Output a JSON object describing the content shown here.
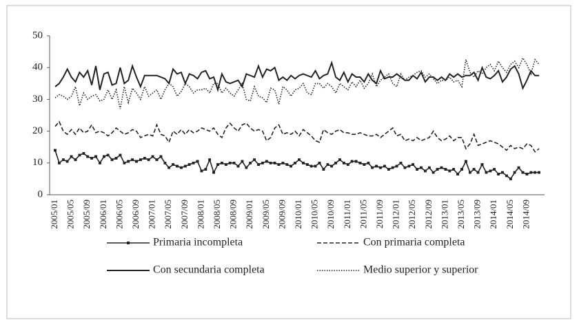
{
  "chart_data": {
    "type": "line",
    "categories": [
      "2005/01",
      null,
      null,
      null,
      "2005/05",
      null,
      null,
      null,
      "2005/09",
      null,
      null,
      null,
      "2006/01",
      null,
      null,
      null,
      "2006/05",
      null,
      null,
      null,
      "2006/09",
      null,
      null,
      null,
      "2007/01",
      null,
      null,
      null,
      "2007/05",
      null,
      null,
      null,
      "2007/09",
      null,
      null,
      null,
      "2008/01",
      null,
      null,
      null,
      "2008/05",
      null,
      null,
      null,
      "2008/09",
      null,
      null,
      null,
      "2009/01",
      null,
      null,
      null,
      "2009/05",
      null,
      null,
      null,
      "2009/09",
      null,
      null,
      null,
      "2010/01",
      null,
      null,
      null,
      "2010/05",
      null,
      null,
      null,
      "2010/09",
      null,
      null,
      null,
      "2011/01",
      null,
      null,
      null,
      "2011/05",
      null,
      null,
      null,
      "2011/09",
      null,
      null,
      null,
      "2012/01",
      null,
      null,
      null,
      "2012/05",
      null,
      null,
      null,
      "2012/09",
      null,
      null,
      null,
      "2013/01",
      null,
      null,
      null,
      "2013/05",
      null,
      null,
      null,
      "2013/09",
      null,
      null,
      null,
      "2014/01",
      null,
      null,
      null,
      "2014/05",
      null,
      null,
      null,
      "2014/09",
      null,
      null,
      null
    ],
    "series": [
      {
        "name": "Primaria incompleta",
        "color": "#222222",
        "style": "solid",
        "marker": "square",
        "values": [
          14,
          10,
          11,
          10.5,
          12,
          11,
          12.5,
          13,
          12,
          11.5,
          12,
          10,
          12,
          12.5,
          11,
          11.5,
          12.5,
          10,
          10.5,
          11,
          10.5,
          11,
          11.5,
          11,
          12,
          11,
          12,
          10,
          8.5,
          9.5,
          9,
          8.5,
          9,
          9.5,
          10,
          10.5,
          7.5,
          8,
          11,
          7,
          9.5,
          10,
          9.5,
          10,
          10,
          9,
          10.5,
          8.5,
          10,
          11,
          9.5,
          10,
          10.5,
          10,
          10,
          9.5,
          10,
          9.5,
          9,
          10,
          11,
          10,
          9.5,
          9,
          9,
          10,
          8,
          9.5,
          9,
          10,
          11,
          10,
          9.5,
          10.5,
          10.5,
          10,
          9.5,
          10,
          8.5,
          9,
          8.5,
          9,
          8,
          8.5,
          9,
          10,
          8.5,
          9,
          9.5,
          8,
          8.5,
          7.5,
          8.5,
          7,
          8,
          8.5,
          8,
          7.5,
          8,
          6.5,
          8,
          10.5,
          7,
          8,
          7,
          9.5,
          7,
          7.5,
          8,
          6.5,
          7,
          6,
          5,
          7,
          8.5,
          7,
          6.5,
          7,
          7,
          7
        ]
      },
      {
        "name": "Con primaria completa",
        "color": "#222222",
        "style": "dashed",
        "values": [
          21.5,
          23,
          20,
          19,
          20.5,
          19,
          21,
          19.5,
          20,
          22,
          19.5,
          20,
          19.5,
          18.5,
          19.5,
          21,
          20,
          19,
          19.5,
          20.5,
          20,
          18,
          18.5,
          19,
          18.5,
          22,
          19,
          18.5,
          16.5,
          20,
          19,
          20.5,
          19,
          20.5,
          19.5,
          20,
          21,
          20.5,
          20,
          21,
          19,
          18,
          21,
          22.5,
          21,
          20,
          22,
          22.5,
          21,
          20,
          20.5,
          20,
          17,
          18,
          21,
          22,
          19,
          19.5,
          19,
          20,
          18.5,
          20.5,
          19.5,
          18.5,
          17,
          16.5,
          20.5,
          19.5,
          19,
          20,
          20.5,
          19.5,
          19.5,
          19,
          19,
          19.5,
          19,
          18.5,
          18.5,
          19,
          18,
          19,
          20,
          21,
          18.5,
          19,
          17,
          17.5,
          17,
          18,
          17,
          17.5,
          18,
          20,
          18,
          17,
          17.5,
          18.5,
          17,
          18,
          18,
          14.5,
          16,
          19,
          15.5,
          16,
          16.5,
          17,
          16.5,
          16,
          15,
          14,
          15.5,
          14.5,
          15,
          14.5,
          16,
          15.5,
          13.5,
          14.5
        ]
      },
      {
        "name": "Con secundaria completa",
        "color": "#222222",
        "style": "solid",
        "values": [
          34,
          35,
          37,
          39.5,
          37,
          35.5,
          38.5,
          37,
          39,
          34.5,
          40.5,
          33,
          38,
          38.5,
          34.5,
          35,
          40,
          35,
          36,
          40.5,
          37,
          34,
          37.5,
          37.5,
          37.5,
          37.5,
          37,
          36.5,
          35,
          39.5,
          38,
          38.5,
          35,
          38,
          37.5,
          36.5,
          38.5,
          39,
          36.5,
          37,
          33,
          38,
          35.5,
          35,
          35.5,
          36,
          34,
          38,
          37.5,
          37,
          40.5,
          37,
          39.5,
          39,
          40,
          36,
          37,
          36,
          37.5,
          36.5,
          37.5,
          38,
          37.5,
          37,
          39,
          36.5,
          37.5,
          38,
          41.5,
          37,
          36,
          38.5,
          35.5,
          38,
          37,
          37,
          35.5,
          38,
          36,
          35,
          39,
          36.5,
          37,
          37,
          38,
          37,
          36,
          36,
          37.5,
          36.5,
          38.5,
          35.5,
          37,
          37,
          36,
          37,
          36,
          38,
          37,
          38,
          37,
          37.5,
          37.5,
          38.5,
          36,
          40,
          37,
          36.5,
          37.5,
          39,
          35.5,
          37,
          39.5,
          40.5,
          38,
          33.5,
          36,
          39,
          37.5,
          37.5
        ]
      },
      {
        "name": "Medio superior y superior",
        "color": "#222222",
        "style": "dotted",
        "values": [
          30.5,
          31.5,
          31,
          30,
          31,
          34,
          28,
          32,
          30,
          31,
          31.5,
          29.5,
          30,
          33,
          30,
          33,
          27,
          34,
          29,
          33.5,
          32,
          30,
          34,
          31,
          32,
          33,
          30,
          33,
          35,
          34,
          31,
          32.5,
          35,
          34,
          32,
          33,
          33,
          33.5,
          32,
          35,
          35,
          32,
          33.5,
          32,
          31,
          33,
          35,
          30,
          29.5,
          34,
          31,
          30.5,
          29,
          33.5,
          33,
          28.5,
          34,
          33,
          31,
          33,
          33.5,
          35,
          32,
          31.5,
          35,
          35,
          33.5,
          35,
          34,
          32,
          35,
          34,
          33,
          35.5,
          34,
          36,
          33.5,
          35,
          38,
          34,
          36,
          37,
          38,
          35,
          34,
          38,
          36,
          37,
          37.5,
          38.5,
          39,
          37,
          38,
          36.5,
          35,
          36,
          36,
          37,
          35.5,
          36,
          34,
          42.5,
          38.5,
          37,
          39,
          38,
          40,
          41,
          39,
          42,
          40,
          38.5,
          41,
          42,
          40,
          43,
          41,
          38,
          42.5,
          41
        ]
      }
    ],
    "ylim": [
      0,
      50
    ],
    "yticks": [
      0,
      10,
      20,
      30,
      40,
      50
    ],
    "grid": false,
    "legend": "bottom"
  }
}
